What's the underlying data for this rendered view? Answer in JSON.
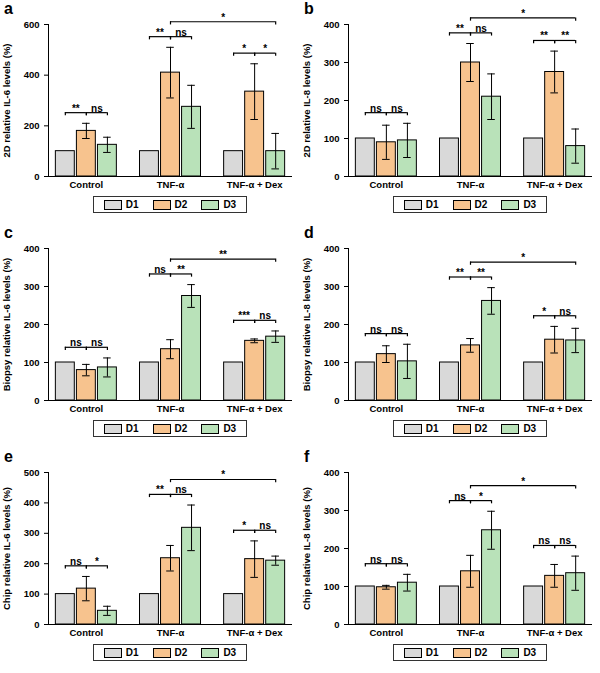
{
  "chart_data": [
    {
      "type": "bar",
      "title": "a",
      "y_label": "2D relative IL-6 levels (%)",
      "categories": [
        "Control",
        "TNF-α",
        "TNF-α + Dex"
      ],
      "series": [
        {
          "name": "D1",
          "color": "#d9d9d9",
          "values": [
            100,
            100,
            100
          ],
          "errors": [
            0,
            0,
            0
          ]
        },
        {
          "name": "D2",
          "color": "#f7c38e",
          "values": [
            180,
            410,
            335
          ],
          "errors": [
            30,
            100,
            110
          ]
        },
        {
          "name": "D3",
          "color": "#b9e2b9",
          "values": [
            125,
            275,
            100
          ],
          "errors": [
            30,
            85,
            70
          ]
        }
      ],
      "ylim": [
        0,
        600
      ],
      "yticks": [
        0,
        200,
        400,
        600
      ],
      "legend": "bottom",
      "comparisons": [
        {
          "from_group": "Control",
          "from": "D1",
          "to_group": "Control",
          "to": "D2",
          "label": "**"
        },
        {
          "from_group": "Control",
          "from": "D2",
          "to_group": "Control",
          "to": "D3",
          "label": "ns"
        },
        {
          "from_group": "TNF-α",
          "from": "D1",
          "to_group": "TNF-α",
          "to": "D2",
          "label": "**"
        },
        {
          "from_group": "TNF-α",
          "from": "D2",
          "to_group": "TNF-α",
          "to": "D3",
          "label": "ns"
        },
        {
          "from_group": "TNF-α + Dex",
          "from": "D1",
          "to_group": "TNF-α + Dex",
          "to": "D2",
          "label": "*"
        },
        {
          "from_group": "TNF-α + Dex",
          "from": "D2",
          "to_group": "TNF-α + Dex",
          "to": "D3",
          "label": "*"
        },
        {
          "from_group": "TNF-α",
          "from": "D2",
          "to_group": "TNF-α + Dex",
          "to": "D3",
          "label": "*"
        }
      ]
    },
    {
      "type": "bar",
      "title": "b",
      "y_label": "2D relative IL-8 levels (%)",
      "categories": [
        "Control",
        "TNF-α",
        "TNF-α + Dex"
      ],
      "series": [
        {
          "name": "D1",
          "color": "#d9d9d9",
          "values": [
            100,
            100,
            100
          ],
          "errors": [
            0,
            0,
            0
          ]
        },
        {
          "name": "D2",
          "color": "#f7c38e",
          "values": [
            90,
            300,
            275
          ],
          "errors": [
            45,
            50,
            55
          ]
        },
        {
          "name": "D3",
          "color": "#b9e2b9",
          "values": [
            95,
            210,
            80
          ],
          "errors": [
            45,
            60,
            45
          ]
        }
      ],
      "ylim": [
        0,
        400
      ],
      "yticks": [
        0,
        100,
        200,
        300,
        400
      ],
      "legend": "bottom",
      "comparisons": [
        {
          "from_group": "Control",
          "from": "D1",
          "to_group": "Control",
          "to": "D2",
          "label": "ns"
        },
        {
          "from_group": "Control",
          "from": "D2",
          "to_group": "Control",
          "to": "D3",
          "label": "ns"
        },
        {
          "from_group": "TNF-α",
          "from": "D1",
          "to_group": "TNF-α",
          "to": "D2",
          "label": "**"
        },
        {
          "from_group": "TNF-α",
          "from": "D2",
          "to_group": "TNF-α",
          "to": "D3",
          "label": "ns"
        },
        {
          "from_group": "TNF-α + Dex",
          "from": "D1",
          "to_group": "TNF-α + Dex",
          "to": "D2",
          "label": "**"
        },
        {
          "from_group": "TNF-α + Dex",
          "from": "D2",
          "to_group": "TNF-α + Dex",
          "to": "D3",
          "label": "**"
        },
        {
          "from_group": "TNF-α",
          "from": "D2",
          "to_group": "TNF-α + Dex",
          "to": "D3",
          "label": "*"
        }
      ]
    },
    {
      "type": "bar",
      "title": "c",
      "y_label": "Biopsy relative IL-6 levels (%)",
      "categories": [
        "Control",
        "TNF-α",
        "TNF-α + Dex"
      ],
      "series": [
        {
          "name": "D1",
          "color": "#d9d9d9",
          "values": [
            100,
            100,
            100
          ],
          "errors": [
            0,
            0,
            0
          ]
        },
        {
          "name": "D2",
          "color": "#f7c38e",
          "values": [
            80,
            135,
            157
          ],
          "errors": [
            15,
            25,
            5
          ]
        },
        {
          "name": "D3",
          "color": "#b9e2b9",
          "values": [
            87,
            275,
            168
          ],
          "errors": [
            25,
            30,
            15
          ]
        }
      ],
      "ylim": [
        0,
        400
      ],
      "yticks": [
        0,
        100,
        200,
        300,
        400
      ],
      "legend": "bottom",
      "comparisons": [
        {
          "from_group": "Control",
          "from": "D1",
          "to_group": "Control",
          "to": "D2",
          "label": "ns"
        },
        {
          "from_group": "Control",
          "from": "D2",
          "to_group": "Control",
          "to": "D3",
          "label": "ns"
        },
        {
          "from_group": "TNF-α",
          "from": "D1",
          "to_group": "TNF-α",
          "to": "D2",
          "label": "ns"
        },
        {
          "from_group": "TNF-α",
          "from": "D2",
          "to_group": "TNF-α",
          "to": "D3",
          "label": "**"
        },
        {
          "from_group": "TNF-α + Dex",
          "from": "D1",
          "to_group": "TNF-α + Dex",
          "to": "D2",
          "label": "***"
        },
        {
          "from_group": "TNF-α + Dex",
          "from": "D2",
          "to_group": "TNF-α + Dex",
          "to": "D3",
          "label": "ns"
        },
        {
          "from_group": "TNF-α",
          "from": "D2",
          "to_group": "TNF-α + Dex",
          "to": "D3",
          "label": "**"
        }
      ]
    },
    {
      "type": "bar",
      "title": "d",
      "y_label": "Biopsy relative IL-8 levels (%)",
      "categories": [
        "Control",
        "TNF-α",
        "TNF-α + Dex"
      ],
      "series": [
        {
          "name": "D1",
          "color": "#d9d9d9",
          "values": [
            100,
            100,
            100
          ],
          "errors": [
            0,
            0,
            0
          ]
        },
        {
          "name": "D2",
          "color": "#f7c38e",
          "values": [
            122,
            145,
            160
          ],
          "errors": [
            22,
            18,
            35
          ]
        },
        {
          "name": "D3",
          "color": "#b9e2b9",
          "values": [
            103,
            262,
            158
          ],
          "errors": [
            45,
            35,
            32
          ]
        }
      ],
      "ylim": [
        0,
        400
      ],
      "yticks": [
        0,
        100,
        200,
        300,
        400
      ],
      "legend": "bottom",
      "comparisons": [
        {
          "from_group": "Control",
          "from": "D1",
          "to_group": "Control",
          "to": "D2",
          "label": "ns"
        },
        {
          "from_group": "Control",
          "from": "D2",
          "to_group": "Control",
          "to": "D3",
          "label": "ns"
        },
        {
          "from_group": "TNF-α",
          "from": "D1",
          "to_group": "TNF-α",
          "to": "D2",
          "label": "**"
        },
        {
          "from_group": "TNF-α",
          "from": "D2",
          "to_group": "TNF-α",
          "to": "D3",
          "label": "**"
        },
        {
          "from_group": "TNF-α + Dex",
          "from": "D1",
          "to_group": "TNF-α + Dex",
          "to": "D2",
          "label": "*"
        },
        {
          "from_group": "TNF-α + Dex",
          "from": "D2",
          "to_group": "TNF-α + Dex",
          "to": "D3",
          "label": "ns"
        },
        {
          "from_group": "TNF-α",
          "from": "D2",
          "to_group": "TNF-α + Dex",
          "to": "D3",
          "label": "*"
        }
      ]
    },
    {
      "type": "bar",
      "title": "e",
      "y_label": "Chip relative IL-6 levels (%)",
      "categories": [
        "Control",
        "TNF-α",
        "TNF-α + Dex"
      ],
      "series": [
        {
          "name": "D1",
          "color": "#d9d9d9",
          "values": [
            100,
            100,
            100
          ],
          "errors": [
            0,
            0,
            0
          ]
        },
        {
          "name": "D2",
          "color": "#f7c38e",
          "values": [
            118,
            218,
            215
          ],
          "errors": [
            40,
            42,
            60
          ]
        },
        {
          "name": "D3",
          "color": "#b9e2b9",
          "values": [
            45,
            318,
            210
          ],
          "errors": [
            15,
            75,
            15
          ]
        }
      ],
      "ylim": [
        0,
        500
      ],
      "yticks": [
        0,
        100,
        200,
        300,
        400,
        500
      ],
      "legend": "bottom",
      "comparisons": [
        {
          "from_group": "Control",
          "from": "D1",
          "to_group": "Control",
          "to": "D2",
          "label": "ns"
        },
        {
          "from_group": "Control",
          "from": "D2",
          "to_group": "Control",
          "to": "D3",
          "label": "*"
        },
        {
          "from_group": "TNF-α",
          "from": "D1",
          "to_group": "TNF-α",
          "to": "D2",
          "label": "**"
        },
        {
          "from_group": "TNF-α",
          "from": "D2",
          "to_group": "TNF-α",
          "to": "D3",
          "label": "ns"
        },
        {
          "from_group": "TNF-α + Dex",
          "from": "D1",
          "to_group": "TNF-α + Dex",
          "to": "D2",
          "label": "*"
        },
        {
          "from_group": "TNF-α + Dex",
          "from": "D2",
          "to_group": "TNF-α + Dex",
          "to": "D3",
          "label": "ns"
        },
        {
          "from_group": "TNF-α",
          "from": "D2",
          "to_group": "TNF-α + Dex",
          "to": "D3",
          "label": "*"
        }
      ]
    },
    {
      "type": "bar",
      "title": "f",
      "y_label": "Chip relative IL-8 levels (%)",
      "categories": [
        "Control",
        "TNF-α",
        "TNF-α + Dex"
      ],
      "series": [
        {
          "name": "D1",
          "color": "#d9d9d9",
          "values": [
            100,
            100,
            100
          ],
          "errors": [
            0,
            0,
            0
          ]
        },
        {
          "name": "D2",
          "color": "#f7c38e",
          "values": [
            98,
            140,
            128
          ],
          "errors": [
            5,
            42,
            30
          ]
        },
        {
          "name": "D3",
          "color": "#b9e2b9",
          "values": [
            110,
            248,
            135
          ],
          "errors": [
            22,
            50,
            45
          ]
        }
      ],
      "ylim": [
        0,
        400
      ],
      "yticks": [
        0,
        100,
        200,
        300,
        400
      ],
      "legend": "bottom",
      "comparisons": [
        {
          "from_group": "Control",
          "from": "D1",
          "to_group": "Control",
          "to": "D2",
          "label": "ns"
        },
        {
          "from_group": "Control",
          "from": "D2",
          "to_group": "Control",
          "to": "D3",
          "label": "ns"
        },
        {
          "from_group": "TNF-α",
          "from": "D1",
          "to_group": "TNF-α",
          "to": "D2",
          "label": "ns"
        },
        {
          "from_group": "TNF-α",
          "from": "D2",
          "to_group": "TNF-α",
          "to": "D3",
          "label": "*"
        },
        {
          "from_group": "TNF-α + Dex",
          "from": "D1",
          "to_group": "TNF-α + Dex",
          "to": "D2",
          "label": "ns"
        },
        {
          "from_group": "TNF-α + Dex",
          "from": "D2",
          "to_group": "TNF-α + Dex",
          "to": "D3",
          "label": "ns"
        },
        {
          "from_group": "TNF-α",
          "from": "D2",
          "to_group": "TNF-α + Dex",
          "to": "D3",
          "label": "*"
        }
      ]
    }
  ]
}
